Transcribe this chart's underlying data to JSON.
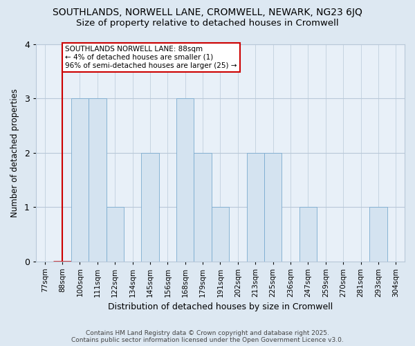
{
  "title1": "SOUTHLANDS, NORWELL LANE, CROMWELL, NEWARK, NG23 6JQ",
  "title2": "Size of property relative to detached houses in Cromwell",
  "xlabel": "Distribution of detached houses by size in Cromwell",
  "ylabel": "Number of detached properties",
  "categories": [
    "77sqm",
    "88sqm",
    "100sqm",
    "111sqm",
    "122sqm",
    "134sqm",
    "145sqm",
    "156sqm",
    "168sqm",
    "179sqm",
    "191sqm",
    "202sqm",
    "213sqm",
    "225sqm",
    "236sqm",
    "247sqm",
    "259sqm",
    "270sqm",
    "281sqm",
    "293sqm",
    "304sqm"
  ],
  "values": [
    0,
    0,
    3,
    3,
    1,
    0,
    2,
    0,
    3,
    2,
    1,
    0,
    2,
    2,
    0,
    1,
    0,
    0,
    0,
    1,
    0
  ],
  "highlight_index": 1,
  "bar_color": "#d4e3f0",
  "bar_edge_color": "#7aabcf",
  "highlight_bar_edge_color": "#cc0000",
  "annotation_box_color": "#ffffff",
  "annotation_box_edge": "#cc0000",
  "annotation_title": "SOUTHLANDS NORWELL LANE: 88sqm",
  "annotation_line1": "← 4% of detached houses are smaller (1)",
  "annotation_line2": "96% of semi-detached houses are larger (25) →",
  "ylim": [
    0,
    4
  ],
  "yticks": [
    0,
    1,
    2,
    3,
    4
  ],
  "footer": "Contains HM Land Registry data © Crown copyright and database right 2025.\nContains public sector information licensed under the Open Government Licence v3.0.",
  "bg_color": "#dde8f2",
  "plot_bg_color": "#e8f0f8"
}
